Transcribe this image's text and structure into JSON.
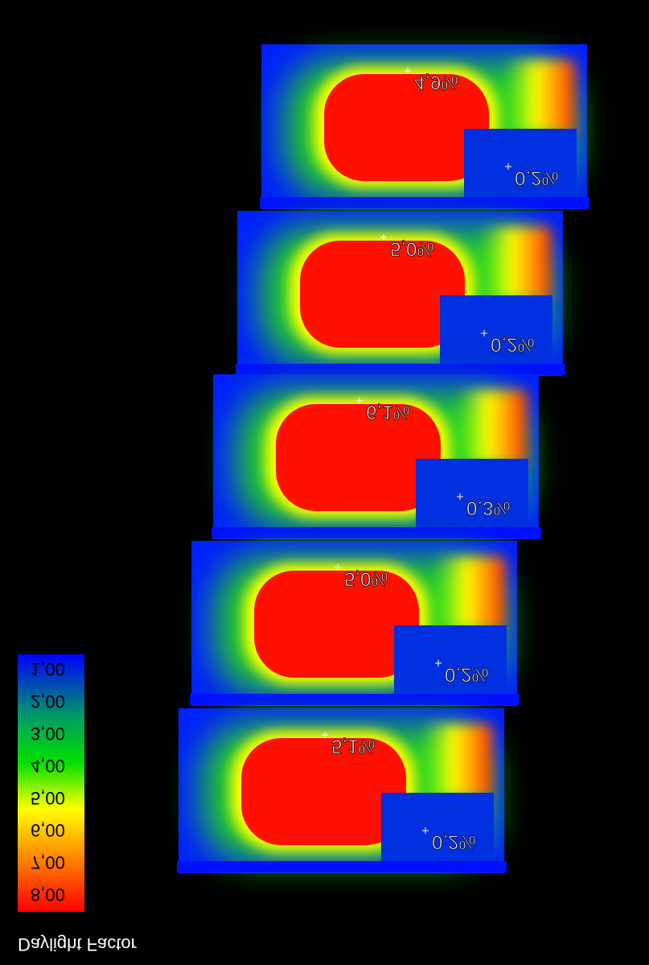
{
  "floors": [
    {
      "peak": "4,9%",
      "low": "0,2%"
    },
    {
      "peak": "5,0%",
      "low": "0,2%"
    },
    {
      "peak": "6,1%",
      "low": "0,3%"
    },
    {
      "peak": "5,0%",
      "low": "0,2%"
    },
    {
      "peak": "5,1%",
      "low": "0,2%"
    }
  ],
  "legend": {
    "title": "Daylight Factor",
    "labels": [
      "1,00",
      "2,00",
      "3,00",
      "4,00",
      "5,00",
      "6,00",
      "7,00",
      "8,00"
    ]
  }
}
